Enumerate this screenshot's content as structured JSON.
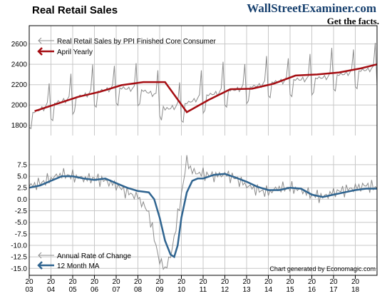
{
  "header": {
    "title": "Real Retail Sales",
    "brand_name": "WallStreetExaminer.com",
    "brand_tagline": "Get the facts."
  },
  "credit": "Chart generated by Economagic.com",
  "colors": {
    "raw_line": "#8c8c8c",
    "trend_line": "#a50d12",
    "ma_line": "#2f6490",
    "grid": "#c8c8c8",
    "frame": "#000000"
  },
  "chart_data": [
    {
      "type": "line",
      "panel": "top",
      "ylim": [
        1700,
        2780
      ],
      "yticks": [
        1800,
        2000,
        2200,
        2400,
        2600
      ],
      "x_range": [
        2003,
        2019
      ],
      "grid": true,
      "legend_position": "top-left",
      "series": [
        {
          "name": "Real Retail Sales by PPI Finished Core Consumer",
          "role": "raw",
          "seasonal_pattern": [
            -140,
            -145,
            10,
            0,
            20,
            0,
            0,
            25,
            -20,
            10,
            40,
            260
          ],
          "trend_points": [
            {
              "x": 2003.0,
              "y": 1900
            },
            {
              "x": 2004.0,
              "y": 2000
            },
            {
              "x": 2005.0,
              "y": 2060
            },
            {
              "x": 2006.0,
              "y": 2120
            },
            {
              "x": 2007.0,
              "y": 2160
            },
            {
              "x": 2008.0,
              "y": 2150
            },
            {
              "x": 2008.75,
              "y": 2100
            },
            {
              "x": 2009.25,
              "y": 1950
            },
            {
              "x": 2010.0,
              "y": 1990
            },
            {
              "x": 2011.0,
              "y": 2080
            },
            {
              "x": 2012.0,
              "y": 2130
            },
            {
              "x": 2013.0,
              "y": 2160
            },
            {
              "x": 2014.0,
              "y": 2210
            },
            {
              "x": 2015.0,
              "y": 2240
            },
            {
              "x": 2016.0,
              "y": 2250
            },
            {
              "x": 2017.0,
              "y": 2280
            },
            {
              "x": 2018.0,
              "y": 2320
            },
            {
              "x": 2018.75,
              "y": 2350
            }
          ]
        },
        {
          "name": "April Yearly",
          "role": "trend",
          "points": [
            {
              "x": 2003.25,
              "y": 1940
            },
            {
              "x": 2004.25,
              "y": 2010
            },
            {
              "x": 2005.25,
              "y": 2080
            },
            {
              "x": 2006.25,
              "y": 2130
            },
            {
              "x": 2007.25,
              "y": 2195
            },
            {
              "x": 2008.25,
              "y": 2225
            },
            {
              "x": 2009.25,
              "y": 2225
            },
            {
              "x": 2010.25,
              "y": 1930
            },
            {
              "x": 2011.25,
              "y": 2050
            },
            {
              "x": 2012.25,
              "y": 2155
            },
            {
              "x": 2013.25,
              "y": 2160
            },
            {
              "x": 2014.25,
              "y": 2210
            },
            {
              "x": 2015.25,
              "y": 2290
            },
            {
              "x": 2016.25,
              "y": 2300
            },
            {
              "x": 2017.25,
              "y": 2320
            },
            {
              "x": 2018.25,
              "y": 2360
            },
            {
              "x": 2019.0,
              "y": 2400
            }
          ]
        }
      ]
    },
    {
      "type": "line",
      "panel": "bottom",
      "ylim": [
        -16.5,
        9.5
      ],
      "yticks": [
        -15.0,
        -12.5,
        -10.0,
        -7.5,
        -5.0,
        -2.5,
        0.0,
        2.5,
        5.0,
        7.5
      ],
      "ytick_labels": [
        "-15.0",
        "-12.5",
        "-10.0",
        "-7.5",
        "-5.0",
        "-2.5",
        "0.0",
        "2.5",
        "5.0",
        "7.5"
      ],
      "x_range": [
        2003,
        2019
      ],
      "grid": true,
      "legend_position": "bottom-left",
      "series": [
        {
          "name": "Annual Rate of Change",
          "role": "raw",
          "noise_amplitude": 1.6,
          "points": [
            {
              "x": 2003.0,
              "y": 2.8
            },
            {
              "x": 2003.5,
              "y": 3.5
            },
            {
              "x": 2004.0,
              "y": 4.5
            },
            {
              "x": 2004.5,
              "y": 5.5
            },
            {
              "x": 2005.0,
              "y": 5.0
            },
            {
              "x": 2005.5,
              "y": 4.5
            },
            {
              "x": 2006.0,
              "y": 4.5
            },
            {
              "x": 2006.5,
              "y": 4.0
            },
            {
              "x": 2007.0,
              "y": 3.0
            },
            {
              "x": 2007.5,
              "y": 1.5
            },
            {
              "x": 2008.0,
              "y": 0.5
            },
            {
              "x": 2008.5,
              "y": -3.0
            },
            {
              "x": 2008.83,
              "y": -10.0
            },
            {
              "x": 2009.0,
              "y": -13.5
            },
            {
              "x": 2009.25,
              "y": -15.0
            },
            {
              "x": 2009.5,
              "y": -12.5
            },
            {
              "x": 2009.75,
              "y": -6.0
            },
            {
              "x": 2010.0,
              "y": 1.0
            },
            {
              "x": 2010.25,
              "y": 8.5
            },
            {
              "x": 2010.5,
              "y": 6.0
            },
            {
              "x": 2011.0,
              "y": 5.5
            },
            {
              "x": 2011.5,
              "y": 5.0
            },
            {
              "x": 2012.0,
              "y": 5.5
            },
            {
              "x": 2012.5,
              "y": 4.5
            },
            {
              "x": 2013.0,
              "y": 3.0
            },
            {
              "x": 2013.5,
              "y": 2.0
            },
            {
              "x": 2014.0,
              "y": 1.5
            },
            {
              "x": 2014.5,
              "y": 2.5
            },
            {
              "x": 2015.0,
              "y": 2.5
            },
            {
              "x": 2015.5,
              "y": 2.0
            },
            {
              "x": 2016.0,
              "y": 1.0
            },
            {
              "x": 2016.5,
              "y": 0.5
            },
            {
              "x": 2017.0,
              "y": 1.5
            },
            {
              "x": 2017.5,
              "y": 2.0
            },
            {
              "x": 2018.0,
              "y": 2.5
            },
            {
              "x": 2018.5,
              "y": 3.0
            },
            {
              "x": 2019.0,
              "y": 2.5
            }
          ]
        },
        {
          "name": "12 Month MA",
          "role": "ma",
          "points": [
            {
              "x": 2003.0,
              "y": 2.5
            },
            {
              "x": 2003.5,
              "y": 3.0
            },
            {
              "x": 2004.0,
              "y": 4.0
            },
            {
              "x": 2004.5,
              "y": 5.0
            },
            {
              "x": 2005.0,
              "y": 5.0
            },
            {
              "x": 2005.5,
              "y": 4.5
            },
            {
              "x": 2006.0,
              "y": 4.2
            },
            {
              "x": 2006.5,
              "y": 4.5
            },
            {
              "x": 2007.0,
              "y": 3.5
            },
            {
              "x": 2007.5,
              "y": 2.5
            },
            {
              "x": 2008.0,
              "y": 1.8
            },
            {
              "x": 2008.5,
              "y": 1.5
            },
            {
              "x": 2008.75,
              "y": 0.0
            },
            {
              "x": 2009.0,
              "y": -4.0
            },
            {
              "x": 2009.25,
              "y": -9.0
            },
            {
              "x": 2009.5,
              "y": -12.0
            },
            {
              "x": 2009.67,
              "y": -12.5
            },
            {
              "x": 2009.83,
              "y": -10.0
            },
            {
              "x": 2010.0,
              "y": -4.0
            },
            {
              "x": 2010.25,
              "y": 1.5
            },
            {
              "x": 2010.5,
              "y": 4.0
            },
            {
              "x": 2010.75,
              "y": 4.5
            },
            {
              "x": 2011.0,
              "y": 4.5
            },
            {
              "x": 2011.5,
              "y": 5.3
            },
            {
              "x": 2012.0,
              "y": 5.5
            },
            {
              "x": 2012.5,
              "y": 4.7
            },
            {
              "x": 2013.0,
              "y": 3.8
            },
            {
              "x": 2013.5,
              "y": 2.7
            },
            {
              "x": 2014.0,
              "y": 2.0
            },
            {
              "x": 2014.5,
              "y": 2.0
            },
            {
              "x": 2015.0,
              "y": 2.5
            },
            {
              "x": 2015.5,
              "y": 2.3
            },
            {
              "x": 2016.0,
              "y": 1.0
            },
            {
              "x": 2016.5,
              "y": 0.5
            },
            {
              "x": 2017.0,
              "y": 1.0
            },
            {
              "x": 2017.5,
              "y": 1.5
            },
            {
              "x": 2018.0,
              "y": 2.0
            },
            {
              "x": 2018.5,
              "y": 2.3
            },
            {
              "x": 2019.0,
              "y": 2.3
            }
          ]
        }
      ]
    }
  ],
  "x_axis": {
    "labels": [
      {
        "x": 2003,
        "top": "20",
        "bottom": "03"
      },
      {
        "x": 2004,
        "top": "20",
        "bottom": "04"
      },
      {
        "x": 2005,
        "top": "20",
        "bottom": "05"
      },
      {
        "x": 2006,
        "top": "20",
        "bottom": "06"
      },
      {
        "x": 2007,
        "top": "20",
        "bottom": "07"
      },
      {
        "x": 2008,
        "top": "20",
        "bottom": "08"
      },
      {
        "x": 2009,
        "top": "20",
        "bottom": "09"
      },
      {
        "x": 2010,
        "top": "20",
        "bottom": "10"
      },
      {
        "x": 2011,
        "top": "20",
        "bottom": "11"
      },
      {
        "x": 2012,
        "top": "20",
        "bottom": "12"
      },
      {
        "x": 2013,
        "top": "20",
        "bottom": "13"
      },
      {
        "x": 2014,
        "top": "20",
        "bottom": "14"
      },
      {
        "x": 2015,
        "top": "20",
        "bottom": "15"
      },
      {
        "x": 2016,
        "top": "20",
        "bottom": "16"
      },
      {
        "x": 2017,
        "top": "20",
        "bottom": "17"
      },
      {
        "x": 2018,
        "top": "20",
        "bottom": "18"
      }
    ]
  }
}
